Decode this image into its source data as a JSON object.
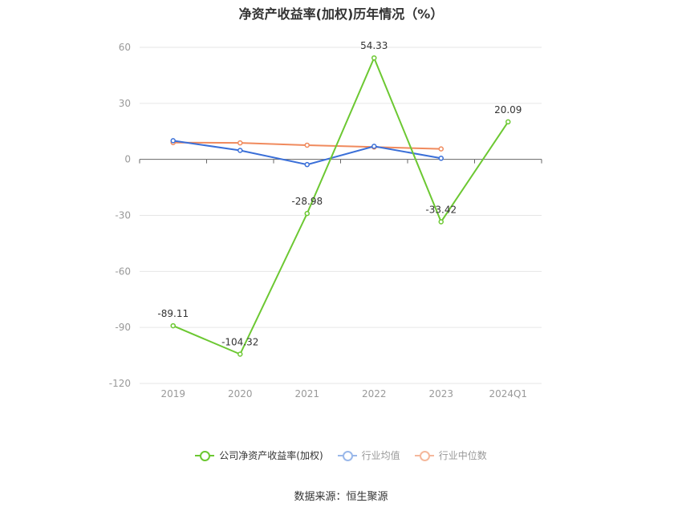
{
  "chart_data": {
    "type": "line",
    "title": "净资产收益率(加权)历年情况（%）",
    "categories": [
      "2019",
      "2020",
      "2021",
      "2022",
      "2023",
      "2024Q1"
    ],
    "yticks": [
      60,
      30,
      0,
      -30,
      -60,
      -90,
      -120
    ],
    "ylim": [
      -120,
      60
    ],
    "grid": true,
    "legend_position": "bottom",
    "series": [
      {
        "name": "公司净资产收益率(加权)",
        "color": "#6cc832",
        "values": [
          -89.11,
          -104.32,
          -28.98,
          54.33,
          -33.42,
          20.09
        ],
        "labels": [
          "-89.11",
          "-104.32",
          "-28.98",
          "54.33",
          "-33.42",
          "20.09"
        ]
      },
      {
        "name": "行业均值",
        "color": "#3a6fd8",
        "values": [
          10.0,
          4.8,
          -2.8,
          7.0,
          0.6,
          null
        ]
      },
      {
        "name": "行业中位数",
        "color": "#f08a5d",
        "values": [
          9.0,
          8.8,
          7.6,
          6.6,
          5.6,
          null
        ]
      }
    ]
  },
  "legend": {
    "items": [
      "公司净资产收益率(加权)",
      "行业均值",
      "行业中位数"
    ],
    "dim_colors": [
      "#6cc832",
      "#9ab8ea",
      "#f5b89c"
    ]
  },
  "source": "数据来源：恒生聚源"
}
